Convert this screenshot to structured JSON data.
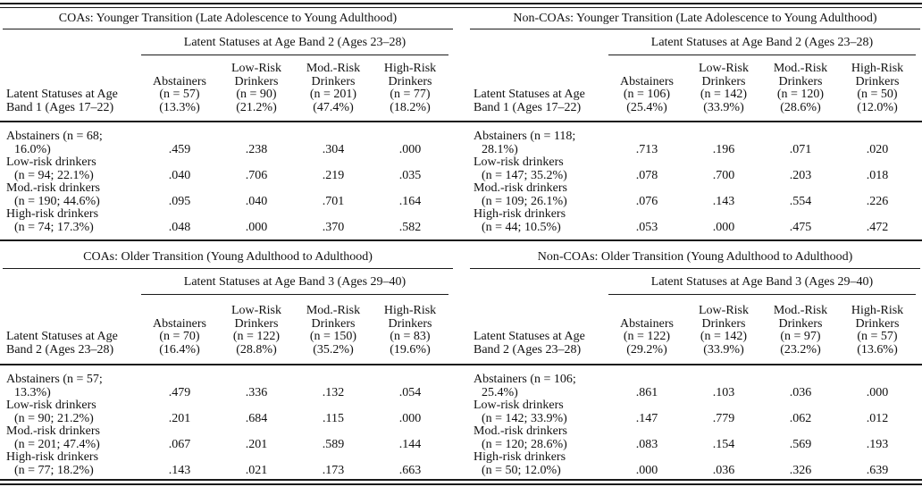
{
  "table": {
    "panels": [
      {
        "title": "COAs: Younger Transition (Late Adolescence to Young Adulthood)",
        "spanner": "Latent Statuses at Age Band 2 (Ages 23–28)",
        "row_header": "Latent Statuses at Age\nBand 1 (Ages 17–22)",
        "col_headers": [
          "Abstainers\n(n = 57)\n(13.3%)",
          "Low-Risk\nDrinkers\n(n = 90)\n(21.2%)",
          "Mod.-Risk\nDrinkers\n(n = 201)\n(47.4%)",
          "High-Risk\nDrinkers\n(n = 77)\n(18.2%)"
        ],
        "rows": [
          {
            "label": "Abstainers (n = 68;\n16.0%)",
            "values": [
              ".459",
              ".238",
              ".304",
              ".000"
            ]
          },
          {
            "label": "Low-risk drinkers\n(n = 94; 22.1%)",
            "values": [
              ".040",
              ".706",
              ".219",
              ".035"
            ]
          },
          {
            "label": "Mod.-risk drinkers\n(n = 190; 44.6%)",
            "values": [
              ".095",
              ".040",
              ".701",
              ".164"
            ]
          },
          {
            "label": "High-risk drinkers\n(n = 74; 17.3%)",
            "values": [
              ".048",
              ".000",
              ".370",
              ".582"
            ]
          }
        ]
      },
      {
        "title": "Non-COAs: Younger Transition (Late Adolescence to Young Adulthood)",
        "spanner": "Latent Statuses at Age Band 2 (Ages 23–28)",
        "row_header": "Latent Statuses at Age\nBand 1 (Ages 17–22)",
        "col_headers": [
          "Abstainers\n(n = 106)\n(25.4%)",
          "Low-Risk\nDrinkers\n(n = 142)\n(33.9%)",
          "Mod.-Risk\nDrinkers\n(n = 120)\n(28.6%)",
          "High-Risk\nDrinkers\n(n = 50)\n(12.0%)"
        ],
        "rows": [
          {
            "label": "Abstainers (n = 118;\n28.1%)",
            "values": [
              ".713",
              ".196",
              ".071",
              ".020"
            ]
          },
          {
            "label": "Low-risk drinkers\n(n = 147; 35.2%)",
            "values": [
              ".078",
              ".700",
              ".203",
              ".018"
            ]
          },
          {
            "label": "Mod.-risk drinkers\n(n = 109; 26.1%)",
            "values": [
              ".076",
              ".143",
              ".554",
              ".226"
            ]
          },
          {
            "label": "High-risk drinkers\n(n = 44; 10.5%)",
            "values": [
              ".053",
              ".000",
              ".475",
              ".472"
            ]
          }
        ]
      },
      {
        "title": "COAs: Older Transition (Young Adulthood to Adulthood)",
        "spanner": "Latent Statuses at Age Band 3 (Ages 29–40)",
        "row_header": "Latent Statuses at Age\nBand 2 (Ages 23–28)",
        "col_headers": [
          "Abstainers\n(n = 70)\n(16.4%)",
          "Low-Risk\nDrinkers\n(n = 122)\n(28.8%)",
          "Mod.-Risk\nDrinkers\n(n = 150)\n(35.2%)",
          "High-Risk\nDrinkers\n(n = 83)\n(19.6%)"
        ],
        "rows": [
          {
            "label": "Abstainers (n = 57;\n13.3%)",
            "values": [
              ".479",
              ".336",
              ".132",
              ".054"
            ]
          },
          {
            "label": "Low-risk drinkers\n(n = 90; 21.2%)",
            "values": [
              ".201",
              ".684",
              ".115",
              ".000"
            ]
          },
          {
            "label": "Mod.-risk drinkers\n(n = 201; 47.4%)",
            "values": [
              ".067",
              ".201",
              ".589",
              ".144"
            ]
          },
          {
            "label": "High-risk drinkers\n(n = 77; 18.2%)",
            "values": [
              ".143",
              ".021",
              ".173",
              ".663"
            ]
          }
        ]
      },
      {
        "title": "Non-COAs: Older Transition (Young Adulthood to Adulthood)",
        "spanner": "Latent Statuses at Age Band 3 (Ages 29–40)",
        "row_header": "Latent Statuses at Age\nBand 2 (Ages 23–28)",
        "col_headers": [
          "Abstainers\n(n = 122)\n(29.2%)",
          "Low-Risk\nDrinkers\n(n = 142)\n(33.9%)",
          "Mod.-Risk\nDrinkers\n(n = 97)\n(23.2%)",
          "High-Risk\nDrinkers\n(n = 57)\n(13.6%)"
        ],
        "rows": [
          {
            "label": "Abstainers (n = 106;\n25.4%)",
            "values": [
              ".861",
              ".103",
              ".036",
              ".000"
            ]
          },
          {
            "label": "Low-risk drinkers\n(n = 142; 33.9%)",
            "values": [
              ".147",
              ".779",
              ".062",
              ".012"
            ]
          },
          {
            "label": "Mod.-risk drinkers\n(n = 120; 28.6%)",
            "values": [
              ".083",
              ".154",
              ".569",
              ".193"
            ]
          },
          {
            "label": "High-risk drinkers\n(n = 50; 12.0%)",
            "values": [
              ".000",
              ".036",
              ".326",
              ".639"
            ]
          }
        ]
      }
    ],
    "line_color": "#1a1a1a"
  }
}
